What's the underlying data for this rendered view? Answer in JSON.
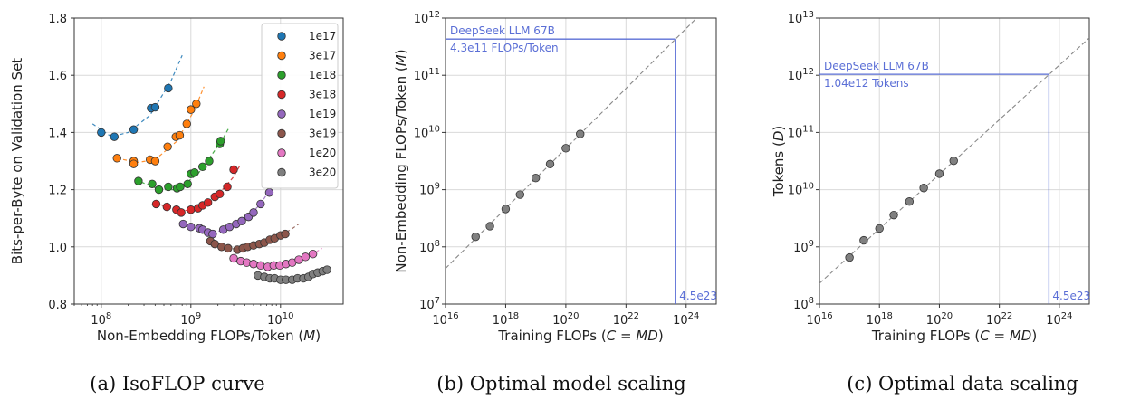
{
  "chart_data": [
    {
      "type": "scatter",
      "id": "a",
      "caption": "(a)  IsoFLOP curve",
      "xlabel": "Non-Embedding FLOPs/Token (",
      "xlabel_var": "M",
      "xlabel_end": ")",
      "ylabel": "Bits-per-Byte on Validation Set",
      "xscale": "log",
      "xlim": [
        50000000.0,
        50000000000.0
      ],
      "ylim": [
        0.8,
        1.8
      ],
      "yticks": [
        "0.8",
        "1.0",
        "1.2",
        "1.4",
        "1.6",
        "1.8"
      ],
      "xticks_exp": [
        "8",
        "9",
        "10"
      ],
      "grid": true,
      "legend_position": "top-right",
      "series": [
        {
          "name": "1e17",
          "color": "#1f77b4",
          "x": [
            100000000.0,
            140000000.0,
            230000000.0,
            360000000.0,
            400000000.0,
            560000000.0
          ],
          "y": [
            1.4,
            1.385,
            1.41,
            1.485,
            1.488,
            1.555
          ],
          "fit": [
            [
              80000000.0,
              1.43
            ],
            [
              130000000.0,
              1.385
            ],
            [
              200000000.0,
              1.4
            ],
            [
              350000000.0,
              1.46
            ],
            [
              600000000.0,
              1.58
            ],
            [
              800000000.0,
              1.67
            ]
          ]
        },
        {
          "name": "3e17",
          "color": "#ff7f0e",
          "x": [
            150000000.0,
            230000000.0,
            230000000.0,
            350000000.0,
            400000000.0,
            550000000.0,
            680000000.0,
            750000000.0,
            900000000.0,
            1000000000.0,
            1150000000.0
          ],
          "y": [
            1.31,
            1.3,
            1.29,
            1.305,
            1.3,
            1.35,
            1.385,
            1.39,
            1.43,
            1.48,
            1.5
          ],
          "fit": [
            [
              150000000.0,
              1.31
            ],
            [
              250000000.0,
              1.295
            ],
            [
              400000000.0,
              1.305
            ],
            [
              700000000.0,
              1.37
            ],
            [
              1100000000.0,
              1.48
            ],
            [
              1400000000.0,
              1.56
            ]
          ]
        },
        {
          "name": "1e18",
          "color": "#2ca02c",
          "x": [
            260000000.0,
            370000000.0,
            440000000.0,
            560000000.0,
            700000000.0,
            760000000.0,
            920000000.0,
            1000000000.0,
            1100000000.0,
            1350000000.0,
            1600000000.0,
            2100000000.0,
            2150000000.0
          ],
          "y": [
            1.23,
            1.22,
            1.2,
            1.21,
            1.205,
            1.21,
            1.22,
            1.255,
            1.26,
            1.28,
            1.3,
            1.36,
            1.37
          ],
          "fit": [
            [
              240000000.0,
              1.235
            ],
            [
              450000000.0,
              1.2
            ],
            [
              700000000.0,
              1.2
            ],
            [
              1200000000.0,
              1.255
            ],
            [
              2200000000.0,
              1.37
            ],
            [
              2700000000.0,
              1.42
            ]
          ]
        },
        {
          "name": "3e18",
          "color": "#d62728",
          "x": [
            410000000.0,
            540000000.0,
            690000000.0,
            780000000.0,
            1000000000.0,
            1200000000.0,
            1350000000.0,
            1550000000.0,
            1850000000.0,
            2100000000.0,
            2550000000.0,
            3000000000.0
          ],
          "y": [
            1.15,
            1.14,
            1.13,
            1.12,
            1.13,
            1.135,
            1.145,
            1.155,
            1.175,
            1.185,
            1.21,
            1.27
          ],
          "fit": [
            [
              400000000.0,
              1.155
            ],
            [
              700000000.0,
              1.125
            ],
            [
              1100000000.0,
              1.13
            ],
            [
              1800000000.0,
              1.165
            ],
            [
              3000000000.0,
              1.245
            ],
            [
              3600000000.0,
              1.29
            ]
          ]
        },
        {
          "name": "1e19",
          "color": "#9467bd",
          "x": [
            820000000.0,
            1000000000.0,
            1250000000.0,
            1350000000.0,
            1550000000.0,
            1750000000.0,
            2300000000.0,
            2700000000.0,
            3200000000.0,
            3700000000.0,
            4400000000.0,
            5000000000.0,
            6000000000.0,
            7500000000.0
          ],
          "y": [
            1.08,
            1.07,
            1.065,
            1.06,
            1.05,
            1.045,
            1.06,
            1.07,
            1.08,
            1.09,
            1.105,
            1.12,
            1.15,
            1.19
          ],
          "fit": [
            [
              800000000.0,
              1.085
            ],
            [
              1400000000.0,
              1.055
            ],
            [
              2300000000.0,
              1.055
            ],
            [
              4000000000.0,
              1.095
            ],
            [
              6000000000.0,
              1.15
            ],
            [
              8000000000.0,
              1.21
            ]
          ]
        },
        {
          "name": "3e19",
          "color": "#8c564b",
          "x": [
            1650000000.0,
            1850000000.0,
            2200000000.0,
            2600000000.0,
            3300000000.0,
            3800000000.0,
            4300000000.0,
            5000000000.0,
            5800000000.0,
            6600000000.0,
            7600000000.0,
            8600000000.0,
            10000000000.0,
            11300000000.0
          ],
          "y": [
            1.02,
            1.01,
            1.0,
            0.995,
            0.99,
            0.995,
            1.0,
            1.005,
            1.01,
            1.015,
            1.025,
            1.03,
            1.04,
            1.045
          ],
          "fit": [
            [
              1600000000.0,
              1.025
            ],
            [
              2800000000.0,
              0.993
            ],
            [
              4500000000.0,
              0.998
            ],
            [
              8000000000.0,
              1.025
            ],
            [
              13000000000.0,
              1.06
            ],
            [
              16000000000.0,
              1.08
            ]
          ]
        },
        {
          "name": "1e20",
          "color": "#e377c2",
          "x": [
            3000000000.0,
            3600000000.0,
            4200000000.0,
            5000000000.0,
            6000000000.0,
            7200000000.0,
            8400000000.0,
            9800000000.0,
            11500000000.0,
            13500000000.0,
            16000000000.0,
            19000000000.0,
            23000000000.0
          ],
          "y": [
            0.96,
            0.95,
            0.945,
            0.94,
            0.935,
            0.93,
            0.935,
            0.935,
            0.94,
            0.945,
            0.955,
            0.965,
            0.975
          ],
          "fit": [
            [
              2800000000.0,
              0.965
            ],
            [
              5000000000.0,
              0.94
            ],
            [
              9000000000.0,
              0.932
            ],
            [
              15000000000.0,
              0.95
            ],
            [
              23000000000.0,
              0.975
            ],
            [
              29000000000.0,
              0.995
            ]
          ]
        },
        {
          "name": "3e20",
          "color": "#7f7f7f",
          "x": [
            5600000000.0,
            6600000000.0,
            7600000000.0,
            8600000000.0,
            10000000000.0,
            11500000000.0,
            13500000000.0,
            15500000000.0,
            18000000000.0,
            20500000000.0,
            23000000000.0,
            26000000000.0,
            29500000000.0,
            33000000000.0
          ],
          "y": [
            0.9,
            0.895,
            0.89,
            0.89,
            0.885,
            0.885,
            0.885,
            0.89,
            0.89,
            0.895,
            0.905,
            0.91,
            0.915,
            0.92
          ],
          "fit": [
            [
              5000000000.0,
              0.905
            ],
            [
              9000000000.0,
              0.888
            ],
            [
              15000000000.0,
              0.887
            ],
            [
              25000000000.0,
              0.905
            ],
            [
              35000000000.0,
              0.93
            ]
          ]
        }
      ]
    },
    {
      "type": "scatter",
      "id": "b",
      "caption": "(b)  Optimal model scaling",
      "xlabel": "Training FLOPs (",
      "xlabel_var": "C = MD",
      "xlabel_end": ")",
      "ylabel": "Non-Embedding FLOPs/Token (",
      "ylabel_var": "M",
      "ylabel_end": ")",
      "xscale": "log",
      "yscale": "log",
      "xlim": [
        1e+16,
        1e+25
      ],
      "ylim": [
        10000000.0,
        1000000000000.0
      ],
      "xticks_exp": [
        "16",
        "18",
        "20",
        "22",
        "24"
      ],
      "yticks_exp": [
        "7",
        "8",
        "9",
        "10",
        "11",
        "12"
      ],
      "grid": true,
      "points_color": "#808080",
      "fit_line": [
        [
          1e+16,
          42000000.0
        ],
        [
          1e+25,
          2200000000000.0
        ]
      ],
      "x": [
        1e+17,
        3e+17,
        1e+18,
        3e+18,
        1e+19,
        3e+19,
        1e+20,
        3e+20
      ],
      "y": [
        150000000.0,
        230000000.0,
        460000000.0,
        820000000.0,
        1600000000.0,
        2800000000.0,
        5300000000.0,
        9400000000.0
      ],
      "annotation": {
        "x": 4.5e+23,
        "y": 430000000000.0,
        "line1": "DeepSeek LLM 67B",
        "line2": "4.3e11 FLOPs/Token",
        "xlabel": "4.5e23",
        "color": "#5b6fd6"
      }
    },
    {
      "type": "scatter",
      "id": "c",
      "caption": "(c)  Optimal data scaling",
      "xlabel": "Training FLOPs (",
      "xlabel_var": "C = MD",
      "xlabel_end": ")",
      "ylabel": "Tokens (",
      "ylabel_var": "D",
      "ylabel_end": ")",
      "xscale": "log",
      "yscale": "log",
      "xlim": [
        1e+16,
        1e+25
      ],
      "ylim": [
        100000000.0,
        10000000000000.0
      ],
      "xticks_exp": [
        "16",
        "18",
        "20",
        "22",
        "24"
      ],
      "yticks_exp": [
        "8",
        "9",
        "10",
        "11",
        "12",
        "13"
      ],
      "grid": true,
      "points_color": "#808080",
      "fit_line": [
        [
          1e+16,
          230000000.0
        ],
        [
          1e+25,
          4500000000000.0
        ]
      ],
      "x": [
        1e+17,
        3e+17,
        1e+18,
        3e+18,
        1e+19,
        3e+19,
        1e+20,
        3e+20
      ],
      "y": [
        650000000.0,
        1300000000.0,
        2100000000.0,
        3600000000.0,
        6200000000.0,
        10700000000.0,
        19000000000.0,
        32000000000.0
      ],
      "annotation": {
        "x": 4.5e+23,
        "y": 1040000000000.0,
        "line1": "DeepSeek LLM 67B",
        "line2": "1.04e12 Tokens",
        "xlabel": "4.5e23",
        "color": "#5b6fd6"
      }
    }
  ]
}
